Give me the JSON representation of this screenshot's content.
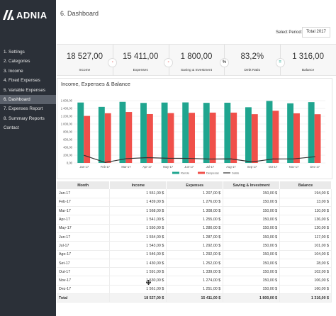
{
  "brand": {
    "name": "ADNIA"
  },
  "nav": {
    "items": [
      "1. Settings",
      "2. Categories",
      "3. Income",
      "4. Fixed Expenses",
      "5. Variable Expenses",
      "6. Dashboard",
      "7. Expenses Report",
      "8. Summary Reports",
      "Contact"
    ],
    "active_index": 5
  },
  "header": {
    "title": "6. Dashboard",
    "period_label": "Select Period:",
    "period_value": "Total 2017"
  },
  "kpis": [
    {
      "value": "18 527,00",
      "label": "Income",
      "icon": "plus-icon",
      "icon_symbol": "+",
      "color": "#1fa58f"
    },
    {
      "value": "15 411,00",
      "label": "Expenses",
      "icon": "minus-icon",
      "icon_symbol": "-",
      "color": "#e44b45"
    },
    {
      "value": "1 800,00",
      "label": "Saving & Investment",
      "icon": "minus-icon",
      "icon_symbol": "-",
      "color": "#e44b45"
    },
    {
      "value": "83,2%",
      "label": "Debt Ratio",
      "icon": "percent-icon",
      "icon_symbol": "%",
      "color": "#555555"
    },
    {
      "value": "1 316,00",
      "label": "Balance",
      "icon": "equals-icon",
      "icon_symbol": "=",
      "color": "#1fa58f"
    }
  ],
  "chart_title": "Income, Expenses & Balance",
  "chart_data": {
    "type": "bar",
    "title": "Income, Expenses & Balance",
    "categories": [
      "Jan-17",
      "Feb-17",
      "Mar-17",
      "Apr-17",
      "May-17",
      "Jun-17",
      "Jul-17",
      "Aug-17",
      "Sep-17",
      "Oct-17",
      "Nov-17",
      "Dec-17"
    ],
    "y_ticks": [
      "0,00",
      "200,00",
      "400,00",
      "600,00",
      "800,00",
      "1 000,00",
      "1 200,00",
      "1 400,00",
      "1 600,00"
    ],
    "ylim": [
      0,
      1600
    ],
    "series": [
      {
        "name": "Rende",
        "type": "bar",
        "color": "#1fa58f",
        "values": [
          1551,
          1439,
          1568,
          1541,
          1550,
          1554,
          1543,
          1546,
          1430,
          1591,
          1530,
          1561
        ]
      },
      {
        "name": "Despesas",
        "type": "bar",
        "color": "#f0504a",
        "values": [
          1207,
          1276,
          1308,
          1255,
          1280,
          1287,
          1292,
          1292,
          1252,
          1339,
          1274,
          1251
        ]
      },
      {
        "name": "Saldo",
        "type": "line",
        "color": "#333333",
        "values": [
          194,
          13,
          110,
          136,
          120,
          117,
          101,
          104,
          28,
          102,
          106,
          160
        ]
      }
    ],
    "legend_position": "bottom",
    "grid": true
  },
  "table": {
    "headers": [
      "Month",
      "Income",
      "Expenses",
      "Saving & Investment",
      "Balance"
    ],
    "rows": [
      [
        "Jan-17",
        "1 551,00 $",
        "1 207,00 $",
        "150,00 $",
        "194,00 $"
      ],
      [
        "Feb-17",
        "1 439,00 $",
        "1 276,00 $",
        "150,00 $",
        "13,00 $"
      ],
      [
        "Mar-17",
        "1 568,00 $",
        "1 308,00 $",
        "150,00 $",
        "110,00 $"
      ],
      [
        "Apr-17",
        "1 541,00 $",
        "1 255,00 $",
        "150,00 $",
        "136,00 $"
      ],
      [
        "May-17",
        "1 550,00 $",
        "1 280,00 $",
        "150,00 $",
        "120,00 $"
      ],
      [
        "Jun-17",
        "1 554,00 $",
        "1 287,00 $",
        "150,00 $",
        "117,00 $"
      ],
      [
        "Jul-17",
        "1 543,00 $",
        "1 292,00 $",
        "150,00 $",
        "101,00 $"
      ],
      [
        "Ago-17",
        "1 546,00 $",
        "1 292,00 $",
        "150,00 $",
        "104,00 $"
      ],
      [
        "Set-17",
        "1 430,00 $",
        "1 252,00 $",
        "150,00 $",
        "28,00 $"
      ],
      [
        "Out-17",
        "1 591,00 $",
        "1 339,00 $",
        "150,00 $",
        "102,00 $"
      ],
      [
        "Nov-17",
        "1 530,00 $",
        "1 274,00 $",
        "150,00 $",
        "106,00 $"
      ],
      [
        "Dez-17",
        "1 561,00 $",
        "1 251,00 $",
        "150,00 $",
        "160,00 $"
      ]
    ],
    "total": [
      "Total",
      "18 527,00 $",
      "15 411,00 $",
      "1 800,00 $",
      "1 316,00 $"
    ]
  }
}
